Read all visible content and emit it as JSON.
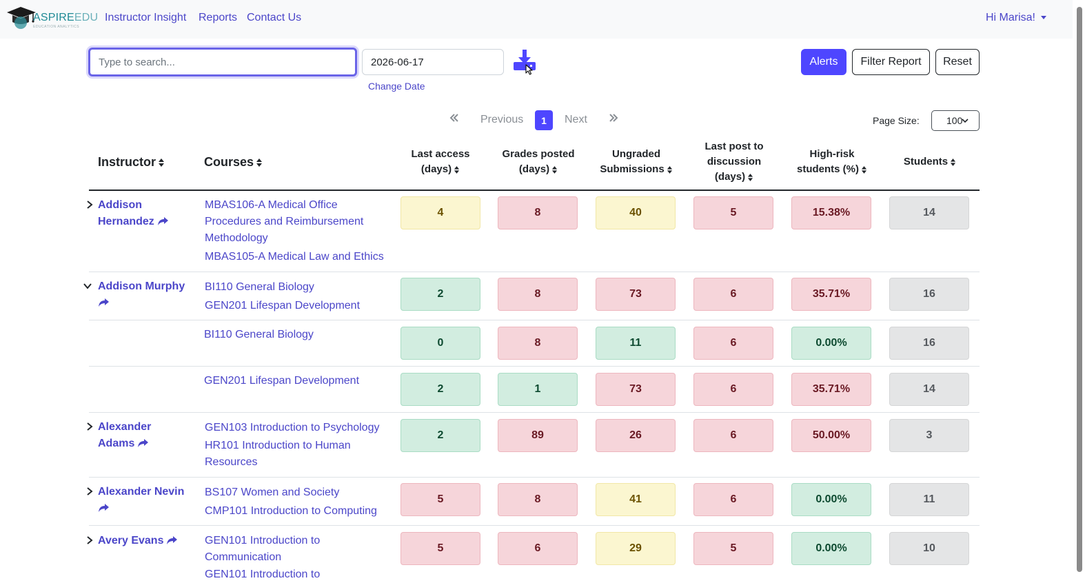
{
  "brand": {
    "name_a": "ASPIRE",
    "name_b": "EDU",
    "tagline": "EDUCATION ANALYTICS"
  },
  "nav": {
    "items": [
      "Instructor Insight",
      "Reports",
      "Contact Us"
    ],
    "user": "Hi Marisa!"
  },
  "toolbar": {
    "search_placeholder": "Type to search...",
    "date_value": "2026-06-17",
    "change_date": "Change Date",
    "alerts": "Alerts",
    "filter_report": "Filter Report",
    "reset": "Reset"
  },
  "pagination": {
    "previous": "Previous",
    "next": "Next",
    "current": "1",
    "page_size_label": "Page Size:",
    "page_size": "100"
  },
  "columns": {
    "instructor": "Instructor",
    "courses": "Courses",
    "last_access": [
      "Last access",
      "(days)"
    ],
    "grades_posted": [
      "Grades posted",
      "(days)"
    ],
    "ungraded": [
      "Ungraded",
      "Submissions"
    ],
    "last_post": [
      "Last post to",
      "discussion",
      "(days)"
    ],
    "high_risk": [
      "High-risk",
      "students (%)"
    ],
    "students": "Students"
  },
  "rows": [
    {
      "instructor": [
        "Addison",
        "Hernandez"
      ],
      "expanded": false,
      "courses": [
        [
          "MBAS106-A Medical Office",
          "Procedures and Reimbursement",
          "Methodology"
        ],
        [
          "MBAS105-A Medical Law and Ethics"
        ]
      ],
      "values": [
        "4",
        "8",
        "40",
        "5",
        "15.38%",
        "14"
      ],
      "colors": [
        "yellow",
        "red",
        "yellow",
        "red",
        "red",
        "gray"
      ]
    },
    {
      "instructor": [
        "Addison Murphy",
        ""
      ],
      "expanded": true,
      "courses": [
        [
          "BI110 General Biology"
        ],
        [
          "GEN201 Lifespan Development"
        ]
      ],
      "values": [
        "2",
        "8",
        "73",
        "6",
        "35.71%",
        "16"
      ],
      "colors": [
        "green",
        "red",
        "red",
        "red",
        "red",
        "gray"
      ]
    },
    {
      "instructor": null,
      "courses": [
        [
          "BI110 General Biology"
        ]
      ],
      "values": [
        "0",
        "8",
        "11",
        "6",
        "0.00%",
        "16"
      ],
      "colors": [
        "green",
        "red",
        "green",
        "red",
        "green",
        "gray"
      ]
    },
    {
      "instructor": null,
      "courses": [
        [
          "GEN201 Lifespan Development"
        ]
      ],
      "values": [
        "2",
        "1",
        "73",
        "6",
        "35.71%",
        "14"
      ],
      "colors": [
        "green",
        "green",
        "red",
        "red",
        "red",
        "gray"
      ]
    },
    {
      "instructor": [
        "Alexander",
        "Adams"
      ],
      "expanded": false,
      "courses": [
        [
          "GEN103 Introduction to Psychology"
        ],
        [
          "HR101 Introduction to Human",
          "Resources"
        ]
      ],
      "values": [
        "2",
        "89",
        "26",
        "6",
        "50.00%",
        "3"
      ],
      "colors": [
        "green",
        "red",
        "red",
        "red",
        "red",
        "gray"
      ]
    },
    {
      "instructor": [
        "Alexander Nevin",
        ""
      ],
      "expanded": false,
      "courses": [
        [
          "BS107 Women and Society"
        ],
        [
          "CMP101 Introduction to Computing"
        ]
      ],
      "values": [
        "5",
        "8",
        "41",
        "6",
        "0.00%",
        "11"
      ],
      "colors": [
        "red",
        "red",
        "yellow",
        "red",
        "green",
        "gray"
      ]
    },
    {
      "instructor": [
        "Avery Evans"
      ],
      "expanded": false,
      "courses": [
        [
          "GEN101 Introduction to",
          "Communication"
        ],
        [
          "GEN101 Introduction to"
        ]
      ],
      "values": [
        "5",
        "6",
        "29",
        "5",
        "0.00%",
        "10"
      ],
      "colors": [
        "red",
        "red",
        "yellow",
        "red",
        "green",
        "gray"
      ]
    }
  ]
}
